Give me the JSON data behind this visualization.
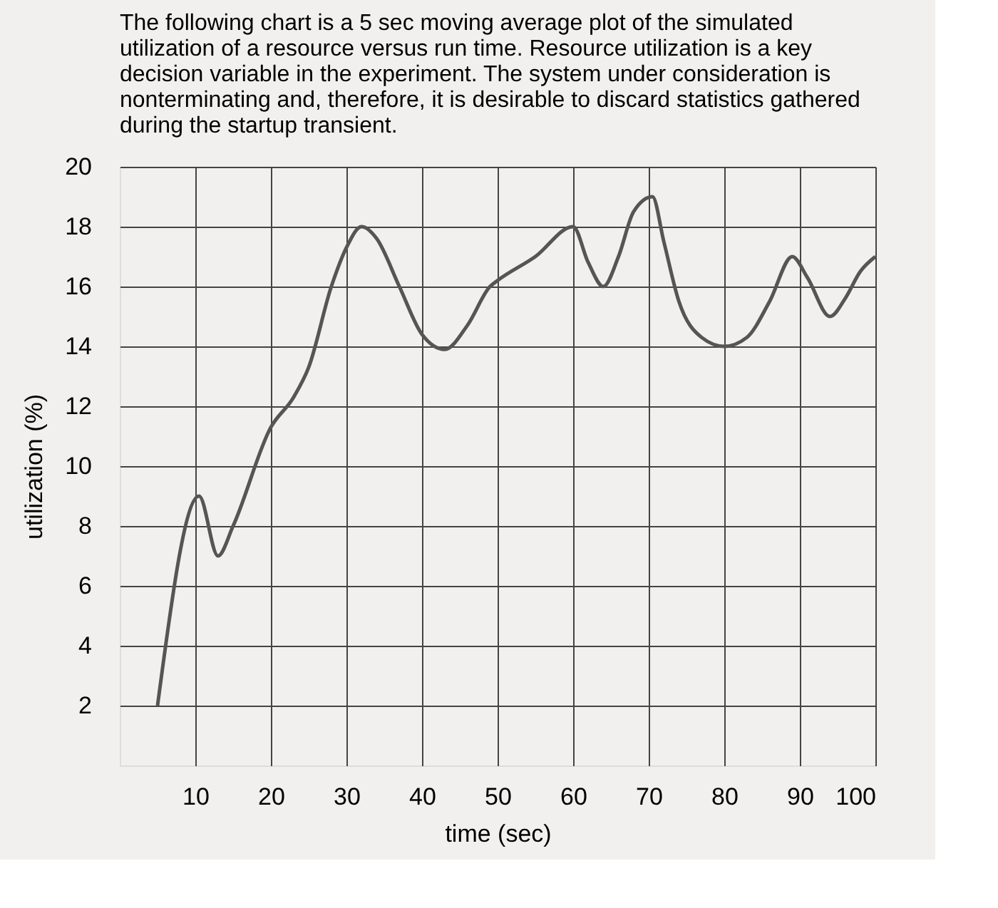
{
  "chart_data": {
    "type": "line",
    "title": "The following chart is a 5 sec moving average plot of the simulated utilization of a resource versus run time. Resource utilization is a key decision variable in the experiment. The system under consideration is nonterminating and, therefore, it is desirable to discard statistics gathered during the startup transient.",
    "xlabel": "time (sec)",
    "ylabel": "utilization (%)",
    "x": [
      5,
      10.5,
      13,
      15,
      20,
      23,
      25,
      28,
      30,
      32,
      34,
      37,
      40,
      43,
      46,
      49,
      50,
      55,
      60,
      62,
      64,
      66,
      68,
      70.5,
      72,
      74,
      77,
      80,
      83,
      86,
      89,
      91,
      94,
      96,
      98,
      100
    ],
    "series": [
      {
        "color": "#555555",
        "values": [
          2,
          9,
          7,
          8,
          11.3,
          12.3,
          13.3,
          16,
          17.3,
          18,
          17.6,
          16,
          14.4,
          13.9,
          14.7,
          16,
          16.2,
          17,
          18,
          16.8,
          16,
          17,
          18.5,
          19,
          17.5,
          15.5,
          14.3,
          14,
          14.3,
          15.5,
          17,
          16.3,
          15,
          15.6,
          16.5,
          17
        ]
      }
    ],
    "xlim": [
      0,
      100
    ],
    "ylim": [
      0,
      20
    ],
    "xticks": [
      10,
      20,
      30,
      40,
      50,
      60,
      70,
      80,
      90,
      100
    ],
    "yticks": [
      2,
      4,
      6,
      8,
      10,
      12,
      14,
      16,
      18,
      20
    ],
    "grid": true,
    "line_style": "solid",
    "marker": "none"
  }
}
